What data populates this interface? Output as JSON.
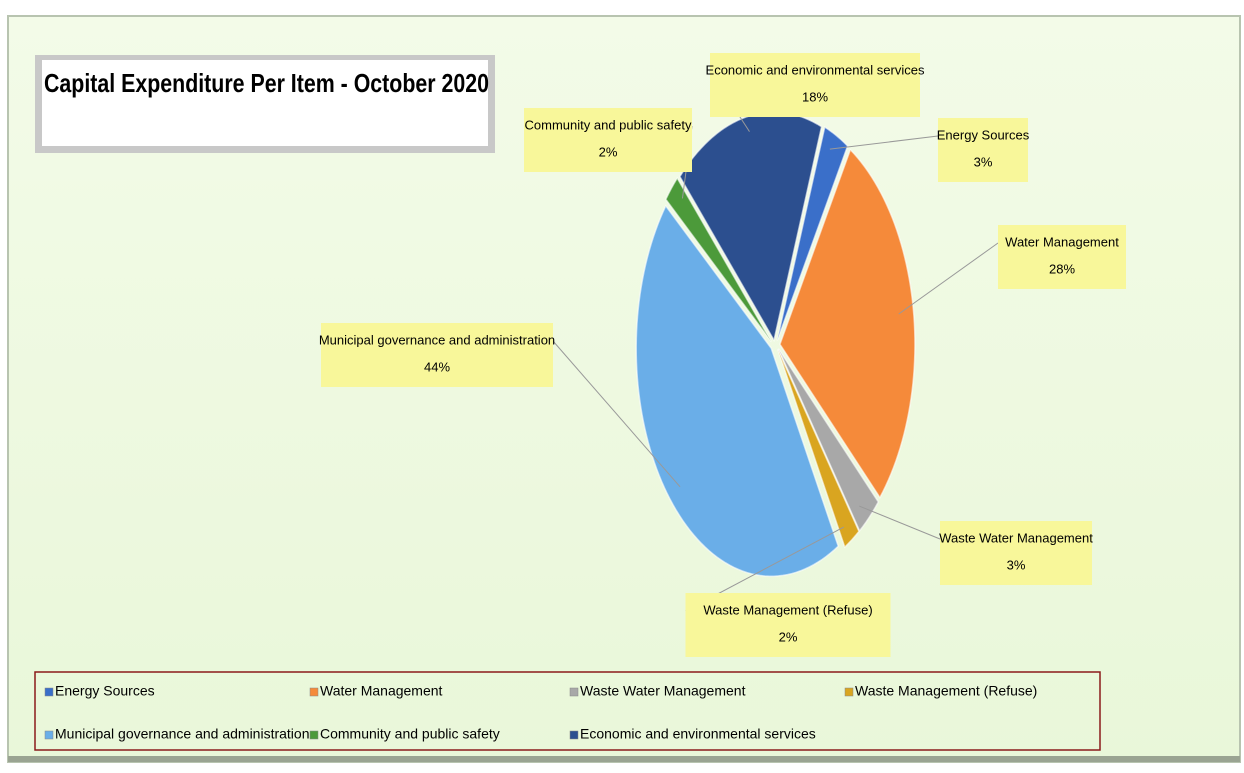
{
  "chart_data": {
    "type": "pie",
    "title": "Capital Expenditure Per Item - October 2020",
    "categories": [
      "Energy Sources",
      "Water Management",
      "Waste Water Management",
      "Waste Management (Refuse)",
      "Municipal governance and administration",
      "Community and public safety",
      "Economic and environmental services"
    ],
    "values": [
      3,
      28,
      3,
      2,
      44,
      2,
      18
    ],
    "value_labels": [
      "3%",
      "28%",
      "3%",
      "2%",
      "44%",
      "2%",
      "18%"
    ],
    "colors": [
      "#3a6fc9",
      "#f58a3a",
      "#a8a8a8",
      "#d9a520",
      "#6aaee8",
      "#4c9a3a",
      "#2c4f8f"
    ]
  }
}
